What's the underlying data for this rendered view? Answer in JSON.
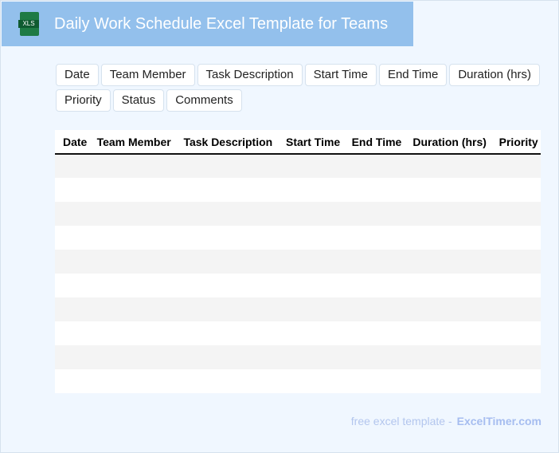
{
  "header": {
    "title": "Daily Work Schedule Excel Template for Teams",
    "icon": "xls-file-icon",
    "icon_label": "XLS"
  },
  "tags": [
    "Date",
    "Team Member",
    "Task Description",
    "Start Time",
    "End Time",
    "Duration (hrs)",
    "Priority",
    "Status",
    "Comments"
  ],
  "table": {
    "columns": [
      "Date",
      "Team Member",
      "Task Description",
      "Start Time",
      "End Time",
      "Duration (hrs)",
      "Priority"
    ],
    "row_count": 10
  },
  "footer": {
    "text": "free excel template -",
    "brand": "ExcelTimer.com"
  }
}
